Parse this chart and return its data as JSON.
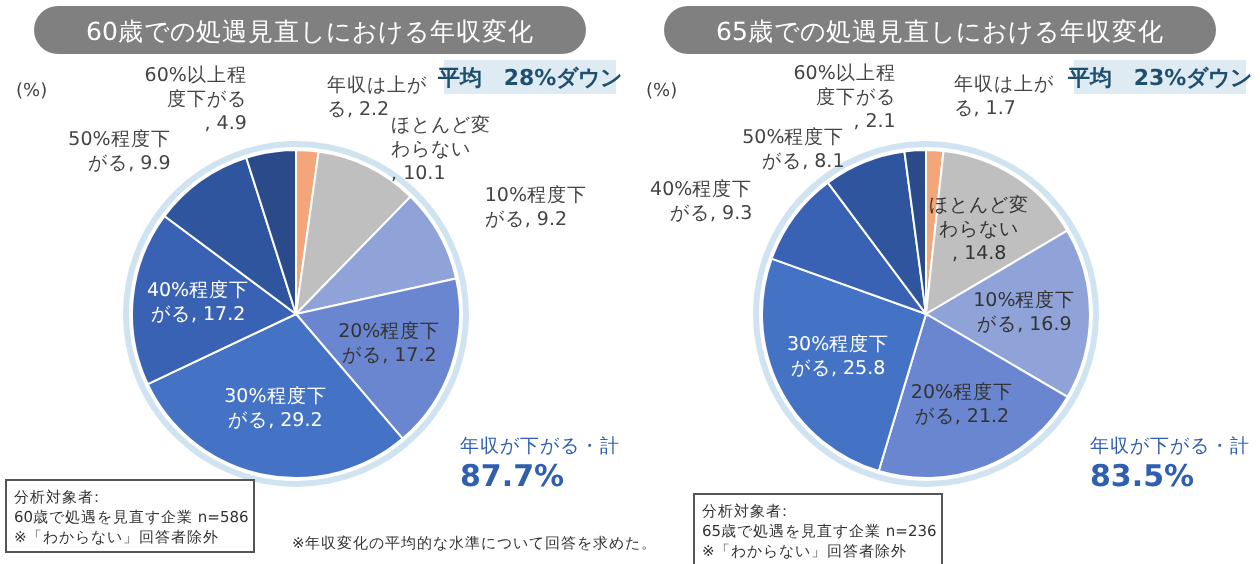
{
  "chart_data": [
    {
      "type": "pie",
      "title": "60歳での処遇見直しにおける年収変化",
      "categories": [
        "年収は上がる",
        "ほとんど変わらない",
        "10%程度下がる",
        "20%程度下がる",
        "30%程度下がる",
        "40%程度下がる",
        "50%程度下がる",
        "60%以上程度下がる"
      ],
      "values": [
        2.2,
        10.1,
        9.2,
        17.2,
        29.2,
        17.2,
        9.9,
        4.9
      ],
      "value_labels": [
        ", 2.2",
        ", 10.1",
        ", 9.2",
        ", 17.2",
        ", 29.2",
        ", 17.2",
        ", 9.9",
        ", 4.9"
      ],
      "colors": [
        "#f4a67a",
        "#bfbfbf",
        "#8fa3d9",
        "#6a86d0",
        "#4472c4",
        "#3a62b4",
        "#2f559f",
        "#2a4a8a"
      ],
      "annotations": [
        "(%)",
        "平均　28%ダウン",
        "年収が下がる・計",
        "87.7%",
        "分析対象者:\n60歳で処遇を見直す企業 n=586\n※「わからない」回答者除外",
        "※年収変化の平均的な水準について回答を求めた。"
      ]
    },
    {
      "type": "pie",
      "title": "65歳での処遇見直しにおける年収変化",
      "categories": [
        "年収は上がる",
        "ほとんど変わらない",
        "10%程度下がる",
        "20%程度下がる",
        "30%程度下がる",
        "40%程度下がる",
        "50%程度下がる",
        "60%以上程度下がる"
      ],
      "values": [
        1.7,
        14.8,
        16.9,
        21.2,
        25.8,
        9.3,
        8.1,
        2.1
      ],
      "value_labels": [
        ", 1.7",
        ", 14.8",
        ", 16.9",
        ", 21.2",
        ", 25.8",
        ", 9.3",
        ", 8.1",
        ", 2.1"
      ],
      "colors": [
        "#f4a67a",
        "#bfbfbf",
        "#8fa3d9",
        "#6a86d0",
        "#4472c4",
        "#3a62b4",
        "#2f559f",
        "#2a4a8a"
      ],
      "annotations": [
        "(%)",
        "平均　23%ダウン",
        "年収が下がる・計",
        "83.5%",
        "分析対象者:\n65歳で処遇を見直す企業 n=236\n※「わからない」回答者除外"
      ]
    }
  ]
}
